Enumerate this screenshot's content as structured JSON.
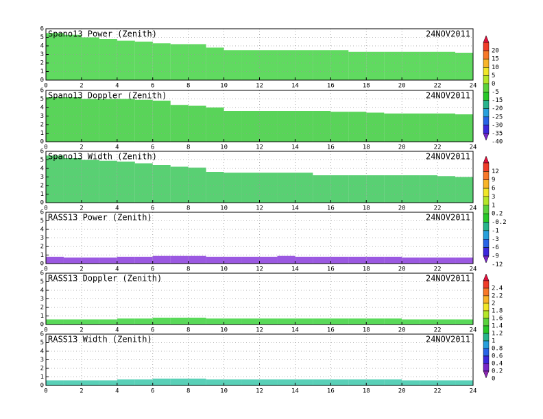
{
  "chart_data": [
    {
      "type": "heatmap",
      "title": "Spano13 Power (Zenith)",
      "date": "24NOV2011",
      "color": "#44d444",
      "x": [
        0,
        1,
        2,
        3,
        4,
        5,
        6,
        7,
        8,
        9,
        10,
        11,
        12,
        13,
        14,
        15,
        16,
        17,
        18,
        19,
        20,
        21,
        22,
        23
      ],
      "values": [
        5.5,
        5.3,
        5,
        4.8,
        4.6,
        4.5,
        4.3,
        4.2,
        4.2,
        3.8,
        3.5,
        3.5,
        3.5,
        3.5,
        3.5,
        3.5,
        3.5,
        3.3,
        3.3,
        3.3,
        3.3,
        3.3,
        3.3,
        3.2
      ],
      "xlim": [
        0,
        24
      ],
      "ylim": [
        0,
        6
      ],
      "xticks": [
        0,
        2,
        4,
        6,
        8,
        10,
        12,
        14,
        16,
        18,
        20,
        22,
        24
      ],
      "yticks": [
        0,
        1,
        2,
        3,
        4,
        5,
        6
      ],
      "grid": true
    },
    {
      "type": "heatmap",
      "title": "Spano13 Doppler (Zenith)",
      "date": "24NOV2011",
      "color": "#3ccc3c",
      "x": [
        0,
        1,
        2,
        3,
        4,
        5,
        6,
        7,
        8,
        9,
        10,
        11,
        12,
        13,
        14,
        15,
        16,
        17,
        18,
        19,
        20,
        21,
        22,
        23
      ],
      "values": [
        5.2,
        5.2,
        5,
        5,
        5,
        4.9,
        4.8,
        4.3,
        4.2,
        4,
        3.6,
        3.6,
        3.6,
        3.6,
        3.6,
        3.6,
        3.5,
        3.5,
        3.4,
        3.3,
        3.3,
        3.3,
        3.3,
        3.2
      ],
      "xlim": [
        0,
        24
      ],
      "ylim": [
        0,
        6
      ],
      "xticks": [
        0,
        2,
        4,
        6,
        8,
        10,
        12,
        14,
        16,
        18,
        20,
        22,
        24
      ],
      "yticks": [
        0,
        1,
        2,
        3,
        4,
        5,
        6
      ],
      "grid": true
    },
    {
      "type": "heatmap",
      "title": "Spano13 Width (Zenith)",
      "date": "24NOV2011",
      "color": "#3cc85a",
      "x": [
        0,
        1,
        2,
        3,
        4,
        5,
        6,
        7,
        8,
        9,
        10,
        11,
        12,
        13,
        14,
        15,
        16,
        17,
        18,
        19,
        20,
        21,
        22,
        23
      ],
      "values": [
        5.5,
        5.2,
        5,
        4.9,
        4.8,
        4.6,
        4.4,
        4.2,
        4.1,
        3.6,
        3.5,
        3.5,
        3.5,
        3.5,
        3.5,
        3.2,
        3.2,
        3.2,
        3.2,
        3.2,
        3.2,
        3.2,
        3.1,
        3.0
      ],
      "xlim": [
        0,
        24
      ],
      "ylim": [
        0,
        6
      ],
      "xticks": [
        0,
        2,
        4,
        6,
        8,
        10,
        12,
        14,
        16,
        18,
        20,
        22,
        24
      ],
      "yticks": [
        0,
        1,
        2,
        3,
        4,
        5,
        6
      ],
      "grid": true
    },
    {
      "type": "heatmap",
      "title": "RASS13 Power (Zenith)",
      "date": "24NOV2011",
      "color": "#8a3cdc",
      "x": [
        0,
        1,
        2,
        3,
        4,
        5,
        6,
        7,
        8,
        9,
        10,
        11,
        12,
        13,
        14,
        15,
        16,
        17,
        18,
        19,
        20,
        21,
        22,
        23
      ],
      "values": [
        0.8,
        0.7,
        0.7,
        0.7,
        0.8,
        0.8,
        0.9,
        0.9,
        0.9,
        0.8,
        0.8,
        0.8,
        0.8,
        0.9,
        0.8,
        0.8,
        0.8,
        0.8,
        0.8,
        0.8,
        0.7,
        0.7,
        0.7,
        0.7
      ],
      "xlim": [
        0,
        24
      ],
      "ylim": [
        0,
        6
      ],
      "xticks": [
        0,
        2,
        4,
        6,
        8,
        10,
        12,
        14,
        16,
        18,
        20,
        22,
        24
      ],
      "yticks": [
        0,
        1,
        2,
        3,
        4,
        5,
        6
      ],
      "grid": true
    },
    {
      "type": "heatmap",
      "title": "RASS13 Doppler (Zenith)",
      "date": "24NOV2011",
      "color": "#3cd23c",
      "x": [
        0,
        1,
        2,
        3,
        4,
        5,
        6,
        7,
        8,
        9,
        10,
        11,
        12,
        13,
        14,
        15,
        16,
        17,
        18,
        19,
        20,
        21,
        22,
        23
      ],
      "values": [
        0.6,
        0.6,
        0.6,
        0.6,
        0.7,
        0.7,
        0.8,
        0.8,
        0.8,
        0.7,
        0.7,
        0.7,
        0.7,
        0.7,
        0.7,
        0.7,
        0.7,
        0.7,
        0.7,
        0.7,
        0.6,
        0.6,
        0.6,
        0.6
      ],
      "xlim": [
        0,
        24
      ],
      "ylim": [
        0,
        6
      ],
      "xticks": [
        0,
        2,
        4,
        6,
        8,
        10,
        12,
        14,
        16,
        18,
        20,
        22,
        24
      ],
      "yticks": [
        0,
        1,
        2,
        3,
        4,
        5,
        6
      ],
      "grid": true
    },
    {
      "type": "heatmap",
      "title": "RASS13 Width (Zenith)",
      "date": "24NOV2011",
      "color": "#3cc8aa",
      "x": [
        0,
        1,
        2,
        3,
        4,
        5,
        6,
        7,
        8,
        9,
        10,
        11,
        12,
        13,
        14,
        15,
        16,
        17,
        18,
        19,
        20,
        21,
        22,
        23
      ],
      "values": [
        0.6,
        0.6,
        0.6,
        0.6,
        0.7,
        0.7,
        0.8,
        0.8,
        0.8,
        0.7,
        0.7,
        0.7,
        0.7,
        0.7,
        0.7,
        0.7,
        0.7,
        0.7,
        0.7,
        0.7,
        0.6,
        0.6,
        0.6,
        0.6
      ],
      "xlim": [
        0,
        24
      ],
      "ylim": [
        0,
        6
      ],
      "xticks": [
        0,
        2,
        4,
        6,
        8,
        10,
        12,
        14,
        16,
        18,
        20,
        22,
        24
      ],
      "yticks": [
        0,
        1,
        2,
        3,
        4,
        5,
        6
      ],
      "grid": true
    }
  ],
  "colorbars": [
    {
      "labels": [
        20,
        15,
        10,
        5,
        0,
        -5,
        -15,
        -20,
        -25,
        -30,
        -35,
        -40
      ],
      "colors": [
        "#e0103c",
        "#f03c28",
        "#f87828",
        "#f8b428",
        "#f0e628",
        "#b4e628",
        "#5ad23c",
        "#28c828",
        "#28b48c",
        "#28a0dc",
        "#2864e6",
        "#3c28dc",
        "#7828c8"
      ]
    },
    {
      "labels": [
        12,
        9,
        6,
        3,
        1,
        0.2,
        -0.2,
        -1,
        -3,
        -6,
        -9,
        -12
      ],
      "colors": [
        "#e0103c",
        "#f03c28",
        "#f87828",
        "#f8b428",
        "#f0e628",
        "#b4e628",
        "#5ad23c",
        "#28c828",
        "#28b48c",
        "#28a0dc",
        "#2864e6",
        "#3c28dc",
        "#7828c8"
      ]
    },
    {
      "labels": [
        2.4,
        2.2,
        2,
        1.8,
        1.6,
        1.4,
        1.2,
        1,
        0.8,
        0.6,
        0.4,
        0.2,
        0
      ],
      "colors": [
        "#e0103c",
        "#f03c28",
        "#f87828",
        "#f8b428",
        "#f0e628",
        "#b4e628",
        "#5ad23c",
        "#28c828",
        "#28b48c",
        "#28a0dc",
        "#2864e6",
        "#3c28dc",
        "#7828c8",
        "#8c28b4"
      ]
    }
  ]
}
